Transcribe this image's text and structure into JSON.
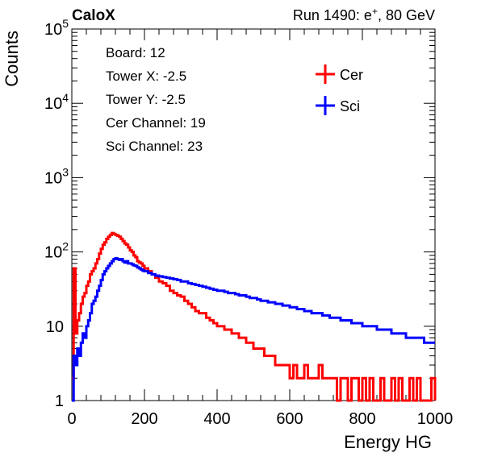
{
  "header": {
    "brand": "CaloX",
    "run_prefix": "Run 1490: e",
    "run_sup": "+",
    "run_suffix": ", 80 GeV"
  },
  "info_box": {
    "lines": [
      "Board: 12",
      "Tower X: -2.5",
      "Tower Y: -2.5",
      "Cer Channel: 19",
      "Sci Channel: 23"
    ]
  },
  "colors": {
    "cer": "#ff0000",
    "sci": "#0000ff"
  },
  "chart_data": {
    "type": "line",
    "xlabel": "Energy HG",
    "ylabel": "Counts",
    "xlim": [
      0,
      1000
    ],
    "ylim": [
      1,
      100000
    ],
    "y_scale": "log",
    "grid": false,
    "legend_position": "top-right",
    "x_ticks": [
      "0",
      "200",
      "400",
      "600",
      "800",
      "1000"
    ],
    "y_ticks": [
      {
        "value": 1,
        "base": "1",
        "exp": ""
      },
      {
        "value": 10,
        "base": "10",
        "exp": ""
      },
      {
        "value": 100,
        "base": "10",
        "exp": "2"
      },
      {
        "value": 1000,
        "base": "10",
        "exp": "3"
      },
      {
        "value": 10000,
        "base": "10",
        "exp": "4"
      },
      {
        "value": 100000,
        "base": "10",
        "exp": "5"
      }
    ],
    "series": [
      {
        "name": "Cer",
        "color": "#ff0000",
        "x": [
          0,
          5,
          10,
          15,
          20,
          25,
          30,
          35,
          40,
          45,
          50,
          55,
          60,
          65,
          70,
          75,
          80,
          85,
          90,
          95,
          100,
          105,
          110,
          115,
          120,
          125,
          130,
          135,
          140,
          145,
          150,
          155,
          160,
          165,
          170,
          175,
          180,
          185,
          190,
          195,
          200,
          210,
          220,
          230,
          240,
          250,
          260,
          270,
          280,
          290,
          300,
          310,
          320,
          330,
          340,
          350,
          360,
          370,
          380,
          390,
          400,
          410,
          420,
          430,
          440,
          450,
          460,
          470,
          480,
          490,
          500,
          510,
          520,
          530,
          540,
          550,
          560,
          570,
          580,
          590,
          600,
          610,
          620,
          630,
          640,
          650,
          660,
          670,
          680,
          690,
          700,
          710,
          720,
          730,
          740,
          750,
          760,
          770,
          780,
          790,
          800,
          810,
          820,
          830,
          840,
          850,
          860,
          870,
          880,
          890,
          900,
          910,
          920,
          930,
          940,
          950,
          960,
          970,
          980,
          990,
          1000
        ],
        "y": [
          2,
          60,
          8,
          12,
          15,
          20,
          25,
          28,
          35,
          40,
          50,
          55,
          60,
          70,
          80,
          95,
          110,
          125,
          135,
          150,
          160,
          170,
          180,
          175,
          170,
          165,
          160,
          150,
          140,
          130,
          125,
          115,
          105,
          100,
          90,
          85,
          75,
          72,
          70,
          65,
          60,
          55,
          50,
          45,
          40,
          38,
          35,
          30,
          28,
          26,
          25,
          22,
          20,
          18,
          16,
          15,
          15,
          13,
          12,
          11,
          10,
          10,
          9,
          9,
          8,
          8,
          7,
          7,
          6,
          6,
          5,
          5,
          5,
          4,
          4,
          4,
          3,
          3,
          3,
          3,
          2,
          3,
          2,
          2,
          3,
          2,
          2,
          2,
          3,
          2,
          2,
          2,
          2,
          1,
          2,
          2,
          1,
          2,
          2,
          1,
          2,
          1,
          2,
          1,
          1,
          2,
          1,
          1,
          2,
          1,
          2,
          1,
          1,
          2,
          1,
          2,
          1,
          1,
          1,
          2,
          1
        ]
      },
      {
        "name": "Sci",
        "color": "#0000ff",
        "x": [
          0,
          5,
          10,
          15,
          20,
          25,
          30,
          35,
          40,
          45,
          50,
          55,
          60,
          65,
          70,
          75,
          80,
          85,
          90,
          95,
          100,
          105,
          110,
          115,
          120,
          125,
          130,
          135,
          140,
          145,
          150,
          155,
          160,
          165,
          170,
          175,
          180,
          185,
          190,
          195,
          200,
          210,
          220,
          230,
          240,
          250,
          260,
          270,
          280,
          290,
          300,
          310,
          320,
          330,
          340,
          350,
          360,
          370,
          380,
          390,
          400,
          410,
          420,
          430,
          440,
          450,
          460,
          470,
          480,
          490,
          500,
          510,
          520,
          530,
          540,
          550,
          560,
          570,
          580,
          590,
          600,
          610,
          620,
          630,
          640,
          650,
          660,
          670,
          680,
          690,
          700,
          710,
          720,
          730,
          740,
          750,
          760,
          770,
          780,
          790,
          800,
          810,
          820,
          830,
          840,
          850,
          860,
          870,
          880,
          890,
          900,
          910,
          920,
          930,
          940,
          950,
          960,
          970,
          980,
          990,
          1000
        ],
        "y": [
          1,
          4,
          3,
          5,
          4,
          6,
          8,
          7,
          10,
          12,
          15,
          20,
          22,
          25,
          30,
          35,
          42,
          50,
          55,
          60,
          65,
          70,
          75,
          80,
          82,
          80,
          78,
          80,
          75,
          72,
          75,
          70,
          70,
          68,
          66,
          65,
          62,
          60,
          58,
          56,
          55,
          52,
          50,
          48,
          47,
          46,
          45,
          44,
          43,
          42,
          40,
          40,
          38,
          37,
          36,
          35,
          34,
          33,
          32,
          31,
          30,
          30,
          29,
          28,
          28,
          27,
          26,
          26,
          25,
          24,
          24,
          23,
          22,
          22,
          21,
          21,
          20,
          20,
          19,
          19,
          18,
          18,
          17,
          17,
          16,
          16,
          15,
          15,
          15,
          14,
          14,
          13,
          13,
          13,
          12,
          12,
          12,
          11,
          11,
          11,
          10,
          10,
          10,
          10,
          9,
          9,
          9,
          9,
          8,
          8,
          8,
          8,
          7,
          7,
          7,
          7,
          7,
          6,
          6,
          6,
          6
        ]
      }
    ]
  }
}
